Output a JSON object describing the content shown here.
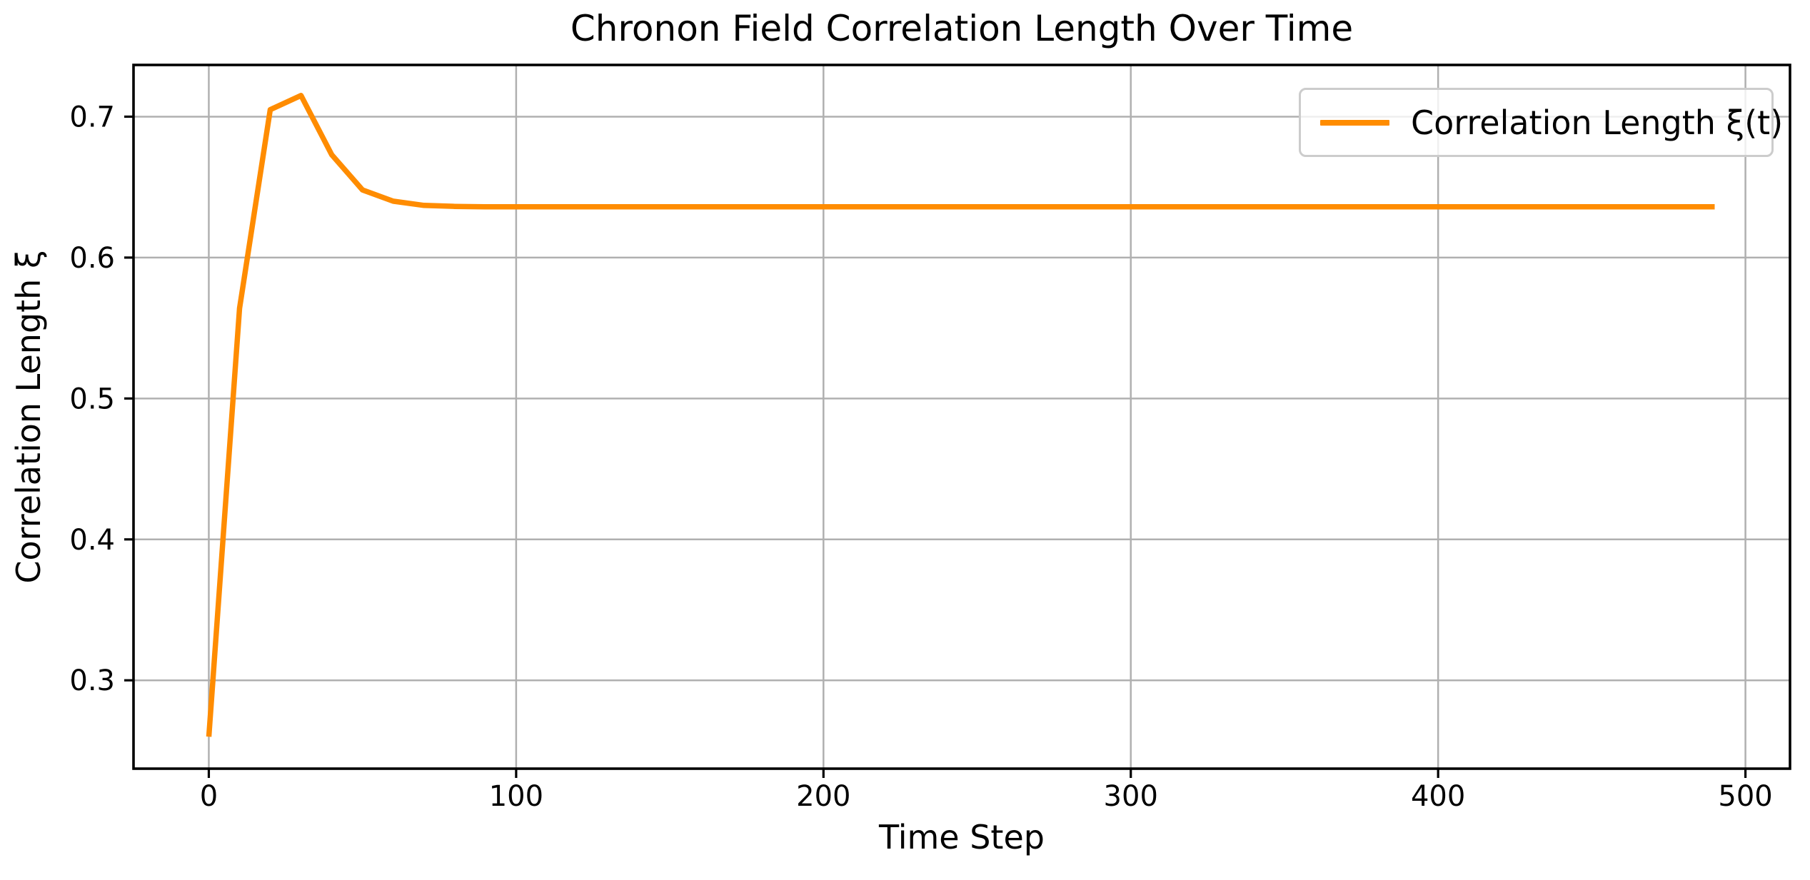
{
  "title": "Chronon Field Correlation Length Over Time",
  "colors": {
    "line": "#ff8c00",
    "grid": "#b0b0b0",
    "spine": "#000000",
    "legend_border": "#cccccc",
    "background": "#ffffff"
  },
  "legend": {
    "label": "Correlation Length ξ(t)",
    "position": "upper right"
  },
  "chart_data": {
    "type": "line",
    "title": "Chronon Field Correlation Length Over Time",
    "xlabel": "Time Step",
    "ylabel": "Correlation Length ξ",
    "xlim": [
      -24.5,
      514.5
    ],
    "ylim": [
      0.2373,
      0.7367
    ],
    "xticks": [
      0,
      100,
      200,
      300,
      400,
      500
    ],
    "yticks": [
      0.3,
      0.4,
      0.5,
      0.6,
      0.7
    ],
    "grid": true,
    "legend_position": "upper right",
    "series": [
      {
        "name": "Correlation Length ξ(t)",
        "color": "#ff8c00",
        "x": [
          0,
          10,
          20,
          30,
          40,
          50,
          60,
          70,
          80,
          90,
          100,
          110,
          120,
          130,
          140,
          150,
          160,
          170,
          180,
          190,
          200,
          210,
          220,
          230,
          240,
          250,
          260,
          270,
          280,
          290,
          300,
          310,
          320,
          330,
          340,
          350,
          360,
          370,
          380,
          390,
          400,
          410,
          420,
          430,
          440,
          450,
          460,
          470,
          480,
          490
        ],
        "y": [
          0.26,
          0.564,
          0.705,
          0.715,
          0.673,
          0.648,
          0.64,
          0.637,
          0.6363,
          0.636,
          0.636,
          0.636,
          0.636,
          0.636,
          0.636,
          0.636,
          0.636,
          0.636,
          0.636,
          0.636,
          0.636,
          0.636,
          0.636,
          0.636,
          0.636,
          0.636,
          0.636,
          0.636,
          0.636,
          0.636,
          0.636,
          0.636,
          0.636,
          0.636,
          0.636,
          0.636,
          0.636,
          0.636,
          0.636,
          0.636,
          0.636,
          0.636,
          0.636,
          0.636,
          0.636,
          0.636,
          0.636,
          0.636,
          0.636,
          0.636
        ]
      }
    ]
  }
}
